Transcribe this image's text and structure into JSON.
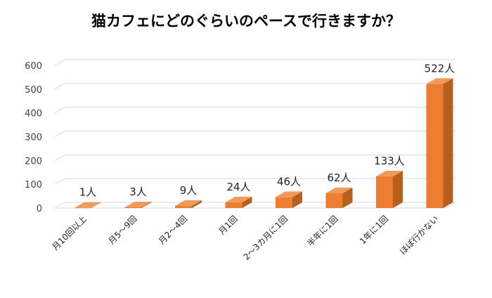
{
  "chart_data": {
    "type": "bar",
    "title": "猫カフェにどのぐらいのペースで行きますか？",
    "categories": [
      "月10回以上",
      "月5～9回",
      "月2～4回",
      "月1回",
      "2～3カ月に1回",
      "半年に1回",
      "1年に1回",
      "ほぼ行かない"
    ],
    "values": [
      1,
      3,
      9,
      24,
      46,
      62,
      133,
      522
    ],
    "data_labels": [
      "1人",
      "3人",
      "9人",
      "24人",
      "46人",
      "62人",
      "133人",
      "522人"
    ],
    "ylim": [
      0,
      600
    ],
    "yticks": [
      "0",
      "100",
      "200",
      "300",
      "400",
      "500",
      "600"
    ],
    "grid": true,
    "bar_color": "#ED7D31",
    "xlabel": "",
    "ylabel": ""
  }
}
